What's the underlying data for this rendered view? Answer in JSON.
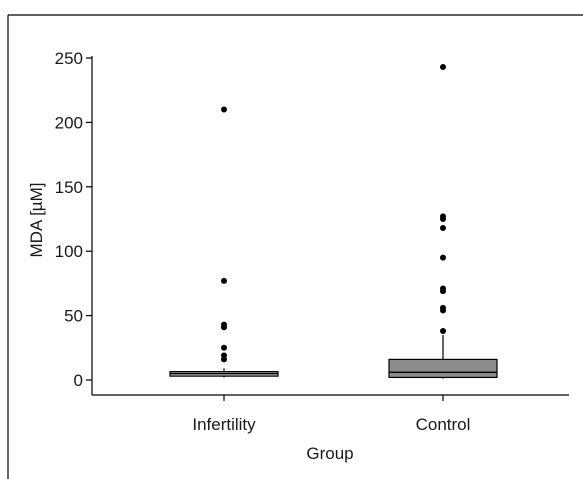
{
  "chart_data": {
    "type": "box",
    "title": "",
    "xlabel": "Group",
    "ylabel": "MDA [µM]",
    "ylim": [
      -10,
      252
    ],
    "y_ticks": [
      0,
      50,
      100,
      150,
      200,
      250
    ],
    "y_tick_labels": [
      "0",
      "50",
      "100",
      "150",
      "200",
      "250"
    ],
    "grid": false,
    "legend": "none",
    "categories": [
      "Infertility",
      "Control"
    ],
    "groups": [
      {
        "name": "Infertility",
        "q1": 3,
        "median": 5,
        "q3": 6.5,
        "whisker_low": 2,
        "whisker_high": 9,
        "box_color": "#b3b3b3",
        "outliers": [
          16,
          19,
          25,
          41,
          43,
          77,
          210
        ]
      },
      {
        "name": "Control",
        "q1": 2,
        "median": 6,
        "q3": 16,
        "whisker_low": 1,
        "whisker_high": 35,
        "box_color": "#8c8c8c",
        "outliers": [
          38,
          54,
          56,
          69,
          71,
          95,
          118,
          125,
          127,
          243
        ]
      }
    ]
  }
}
